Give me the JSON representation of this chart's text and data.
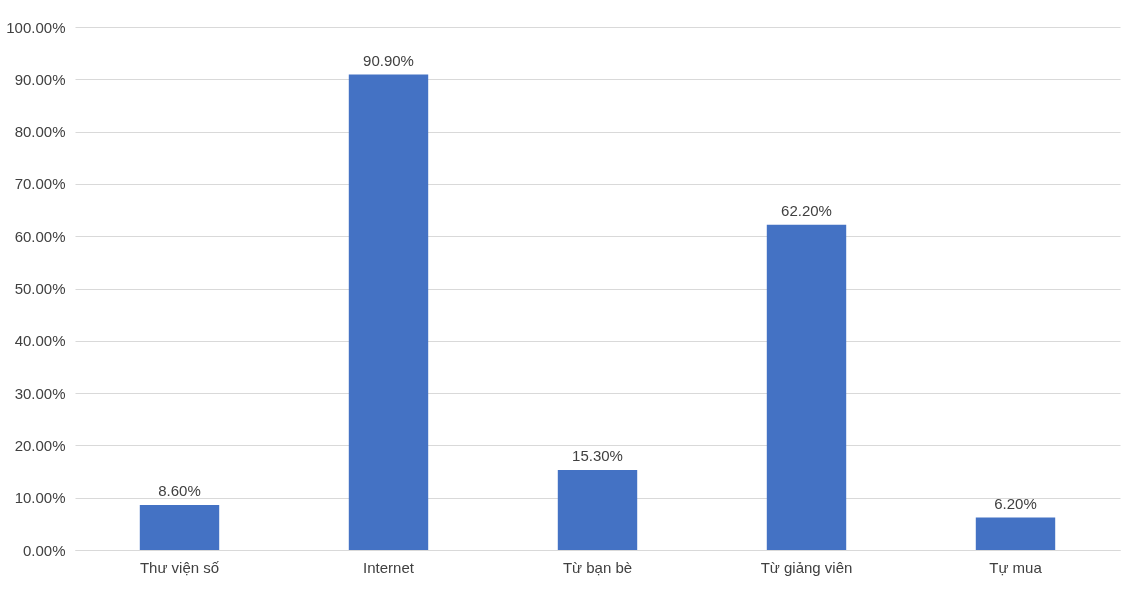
{
  "chart_data": {
    "type": "bar",
    "categories": [
      "Thư viện số",
      "Internet",
      "Từ bạn bè",
      "Từ giảng viên",
      "Tự mua"
    ],
    "values": [
      8.6,
      90.9,
      15.3,
      62.2,
      6.2
    ],
    "value_labels": [
      "8.60%",
      "90.90%",
      "15.30%",
      "62.20%",
      "6.20%"
    ],
    "color": "#4472c4",
    "ylim": [
      0,
      100
    ],
    "yticks": [
      {
        "value": 0,
        "label": "0.00%"
      },
      {
        "value": 10,
        "label": "10.00%"
      },
      {
        "value": 20,
        "label": "20.00%"
      },
      {
        "value": 30,
        "label": "30.00%"
      },
      {
        "value": 40,
        "label": "40.00%"
      },
      {
        "value": 50,
        "label": "50.00%"
      },
      {
        "value": 60,
        "label": "60.00%"
      },
      {
        "value": 70,
        "label": "70.00%"
      },
      {
        "value": 80,
        "label": "80.00%"
      },
      {
        "value": 90,
        "label": "90.00%"
      },
      {
        "value": 100,
        "label": "100.00%"
      }
    ],
    "grid": "y"
  }
}
